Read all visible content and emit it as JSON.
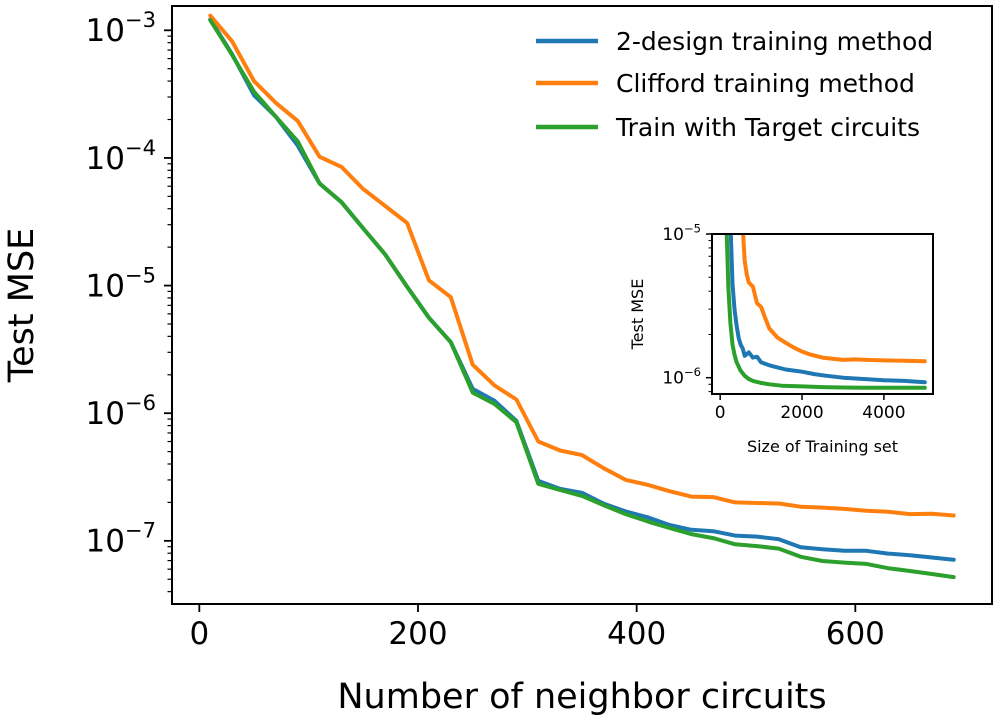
{
  "chart_data": [
    {
      "type": "line",
      "xlabel": "Number of neighbor circuits",
      "ylabel": "Test MSE",
      "xlim": [
        -25,
        725
      ],
      "ylim": [
        3.2e-08,
        0.00155
      ],
      "yscale": "log",
      "xticks": [
        0,
        200,
        400,
        600
      ],
      "yticks": [
        {
          "value": 0.001,
          "base": "10",
          "exp": "−3"
        },
        {
          "value": 0.0001,
          "base": "10",
          "exp": "−4"
        },
        {
          "value": 1e-05,
          "base": "10",
          "exp": "−5"
        },
        {
          "value": 1e-06,
          "base": "10",
          "exp": "−6"
        },
        {
          "value": 1e-07,
          "base": "10",
          "exp": "−7"
        }
      ],
      "grid": false,
      "legend_position": "top-right",
      "x": [
        10,
        30,
        50,
        70,
        90,
        110,
        130,
        150,
        170,
        190,
        210,
        230,
        250,
        270,
        290,
        310,
        330,
        350,
        370,
        390,
        410,
        430,
        450,
        470,
        490,
        510,
        530,
        550,
        570,
        590,
        610,
        630,
        650,
        670,
        690
      ],
      "series": [
        {
          "name": "2-design training method",
          "color": "#1f77b4",
          "values": [
            0.00122,
            0.00065,
            0.00031,
            0.00021,
            0.000125,
            6.3e-05,
            4.5e-05,
            2.8e-05,
            1.75e-05,
            9.8e-06,
            5.6e-06,
            3.6e-06,
            1.55e-06,
            1.25e-06,
            8.7e-07,
            2.95e-07,
            2.55e-07,
            2.38e-07,
            1.95e-07,
            1.7e-07,
            1.53e-07,
            1.33e-07,
            1.22e-07,
            1.19e-07,
            1.1e-07,
            1.08e-07,
            1.03e-07,
            8.9e-08,
            8.6e-08,
            8.35e-08,
            8.35e-08,
            7.95e-08,
            7.7e-08,
            7.4e-08,
            7.1e-08
          ]
        },
        {
          "name": "Clifford training method",
          "color": "#ff7f0e",
          "values": [
            0.0013,
            0.00082,
            0.0004,
            0.00027,
            0.000195,
            0.000102,
            8.5e-05,
            5.7e-05,
            4.2e-05,
            3.1e-05,
            1.1e-05,
            8.1e-06,
            2.4e-06,
            1.65e-06,
            1.28e-06,
            6e-07,
            5.1e-07,
            4.7e-07,
            3.7e-07,
            3e-07,
            2.75e-07,
            2.45e-07,
            2.22e-07,
            2.2e-07,
            2e-07,
            1.98e-07,
            1.96e-07,
            1.85e-07,
            1.82e-07,
            1.78e-07,
            1.72e-07,
            1.69e-07,
            1.62e-07,
            1.63e-07,
            1.58e-07
          ]
        },
        {
          "name": "Train with Target circuits",
          "color": "#2ca02c",
          "values": [
            0.0012,
            0.00064,
            0.00033,
            0.00021,
            0.000135,
            6.3e-05,
            4.5e-05,
            2.8e-05,
            1.75e-05,
            9.8e-06,
            5.6e-06,
            3.6e-06,
            1.45e-06,
            1.18e-06,
            8.5e-07,
            2.8e-07,
            2.5e-07,
            2.25e-07,
            1.9e-07,
            1.62e-07,
            1.42e-07,
            1.26e-07,
            1.13e-07,
            1.05e-07,
            9.4e-08,
            9.1e-08,
            8.7e-08,
            7.5e-08,
            6.95e-08,
            6.75e-08,
            6.6e-08,
            6.1e-08,
            5.8e-08,
            5.5e-08,
            5.2e-08
          ]
        }
      ]
    },
    {
      "type": "line",
      "xlabel": "Size of Training set",
      "ylabel": "Test MSE",
      "xlim": [
        -200,
        5200
      ],
      "ylim": [
        7.7e-07,
        1e-05
      ],
      "yscale": "log",
      "xticks": [
        0,
        2000,
        4000
      ],
      "yticks": [
        {
          "value": 1e-05,
          "base": "10",
          "exp": "−5"
        },
        {
          "value": 1e-06,
          "base": "10",
          "exp": "−6"
        }
      ],
      "grid": false,
      "series": [
        {
          "name": "2-design training method",
          "color": "#1f77b4",
          "x": [
            260,
            300,
            350,
            400,
            450,
            500,
            550,
            600,
            700,
            800,
            900,
            1000,
            1200,
            1400,
            1600,
            1800,
            2000,
            2300,
            2600,
            3000,
            3500,
            4000,
            4500,
            5000
          ],
          "values": [
            1e-05,
            4.5e-06,
            3e-06,
            2.3e-06,
            1.9e-06,
            1.7e-06,
            1.6e-06,
            1.42e-06,
            1.5e-06,
            1.38e-06,
            1.4e-06,
            1.28e-06,
            1.22e-06,
            1.18e-06,
            1.14e-06,
            1.12e-06,
            1.1e-06,
            1.06e-06,
            1.03e-06,
            1e-06,
            9.8e-07,
            9.6e-07,
            9.5e-07,
            9.3e-07
          ]
        },
        {
          "name": "Clifford training method",
          "color": "#ff7f0e",
          "x": [
            560,
            600,
            650,
            700,
            800,
            900,
            1000,
            1100,
            1200,
            1400,
            1600,
            1800,
            2000,
            2200,
            2500,
            2800,
            3000,
            3300,
            3600,
            4000,
            4500,
            5000
          ],
          "values": [
            1e-05,
            6.5e-06,
            5.2e-06,
            4.6e-06,
            4.3e-06,
            3.3e-06,
            3.1e-06,
            2.6e-06,
            2.2e-06,
            1.9e-06,
            1.75e-06,
            1.62e-06,
            1.52e-06,
            1.45e-06,
            1.38e-06,
            1.35e-06,
            1.33e-06,
            1.34e-06,
            1.33e-06,
            1.32e-06,
            1.31e-06,
            1.3e-06
          ]
        },
        {
          "name": "Train with Target circuits",
          "color": "#2ca02c",
          "x": [
            160,
            200,
            250,
            300,
            350,
            400,
            500,
            600,
            700,
            800,
            1000,
            1200,
            1500,
            2000,
            2500,
            3000,
            3500,
            4000,
            4500,
            5000
          ],
          "values": [
            1e-05,
            4.2e-06,
            2.4e-06,
            1.7e-06,
            1.45e-06,
            1.28e-06,
            1.12e-06,
            1.03e-06,
            9.8e-07,
            9.5e-07,
            9.2e-07,
            9e-07,
            8.8e-07,
            8.7e-07,
            8.6e-07,
            8.55e-07,
            8.5e-07,
            8.5e-07,
            8.5e-07,
            8.5e-07
          ]
        }
      ]
    }
  ]
}
